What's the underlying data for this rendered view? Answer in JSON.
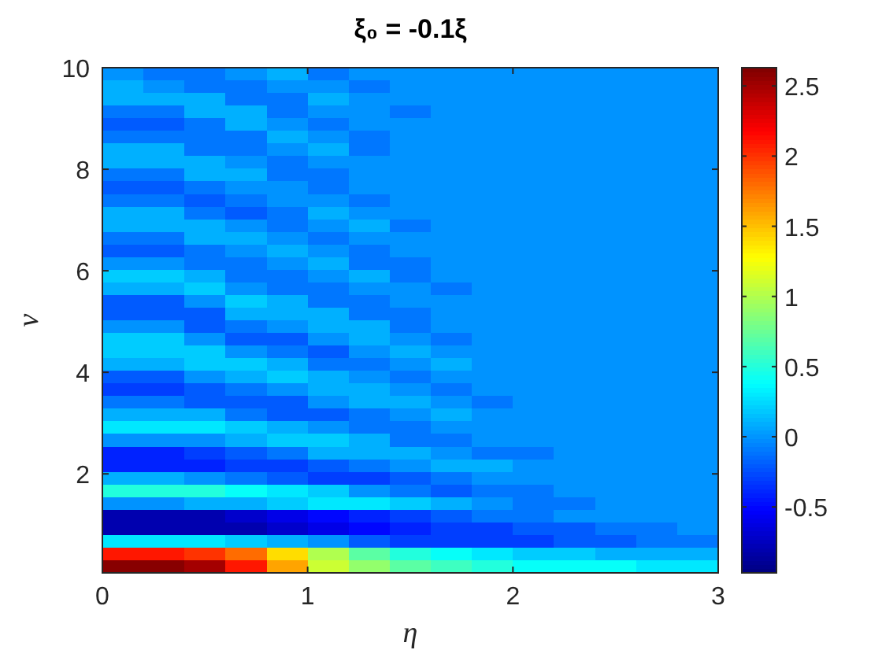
{
  "chart_data": {
    "type": "heatmap",
    "title": "ξ₀ = -0.1ξ",
    "xlabel": "η",
    "ylabel": "ν",
    "xlim": [
      0,
      3
    ],
    "xticks": [
      0,
      1,
      2,
      3
    ],
    "ylim": [
      0.05,
      10
    ],
    "yticks": [
      2,
      4,
      6,
      8,
      10
    ],
    "clim": [
      -0.97,
      2.63
    ],
    "cticks": [
      -0.5,
      0,
      0.5,
      1,
      1.5,
      2,
      2.5
    ],
    "cells": [
      [
        0,
        -0.1,
        -0.1,
        0,
        0.1,
        -0.1,
        0,
        0,
        0,
        0,
        0,
        0,
        0,
        0,
        0
      ],
      [
        0.1,
        0,
        -0.1,
        -0.1,
        0,
        0,
        -0.1,
        0,
        0,
        0,
        0,
        0,
        0,
        0,
        0
      ],
      [
        0.1,
        0.1,
        0.1,
        -0.1,
        -0.1,
        0.1,
        0,
        0,
        0,
        0,
        0,
        0,
        0,
        0,
        0
      ],
      [
        -0.1,
        -0.1,
        0.1,
        0.1,
        -0.1,
        0,
        0,
        -0.1,
        0,
        0,
        0,
        0,
        0,
        0,
        0
      ],
      [
        -0.2,
        -0.2,
        -0.1,
        0.1,
        0,
        -0.1,
        0,
        0,
        0,
        0,
        0,
        0,
        0,
        0,
        0
      ],
      [
        -0.1,
        -0.1,
        -0.1,
        -0.1,
        0.1,
        0,
        -0.1,
        0,
        0,
        0,
        0,
        0,
        0,
        0,
        0
      ],
      [
        0.1,
        0.1,
        -0.1,
        -0.1,
        0,
        0.1,
        -0.1,
        0,
        0,
        0,
        0,
        0,
        0,
        0,
        0
      ],
      [
        0.1,
        0.1,
        0.1,
        0,
        -0.1,
        0,
        0,
        0,
        0,
        0,
        0,
        0,
        0,
        0,
        0
      ],
      [
        -0.1,
        -0.1,
        0.1,
        0.1,
        -0.1,
        -0.1,
        0,
        0,
        0,
        0,
        0,
        0,
        0,
        0,
        0
      ],
      [
        -0.2,
        -0.2,
        -0.1,
        0,
        0,
        -0.1,
        0,
        0,
        0,
        0,
        0,
        0,
        0,
        0,
        0
      ],
      [
        -0.1,
        -0.1,
        -0.2,
        -0.1,
        0,
        0,
        -0.1,
        0,
        0,
        0,
        0,
        0,
        0,
        0,
        0
      ],
      [
        0.1,
        0.1,
        -0.1,
        -0.2,
        -0.1,
        0.1,
        0,
        0,
        0,
        0,
        0,
        0,
        0,
        0,
        0
      ],
      [
        0.1,
        0.1,
        0.1,
        0,
        -0.1,
        0,
        0.1,
        -0.1,
        0,
        0,
        0,
        0,
        0,
        0,
        0
      ],
      [
        -0.1,
        -0.1,
        0.1,
        0.1,
        0,
        -0.1,
        0,
        0,
        0,
        0,
        0,
        0,
        0,
        0,
        0
      ],
      [
        -0.2,
        -0.2,
        -0.1,
        0,
        0.1,
        0,
        -0.1,
        0,
        0,
        0,
        0,
        0,
        0,
        0,
        0
      ],
      [
        0,
        0,
        -0.1,
        -0.1,
        0,
        0.1,
        -0.1,
        -0.1,
        0,
        0,
        0,
        0,
        0,
        0,
        0
      ],
      [
        0.2,
        0.2,
        0.1,
        -0.1,
        -0.1,
        0,
        0.1,
        -0.1,
        0,
        0,
        0,
        0,
        0,
        0,
        0
      ],
      [
        0.1,
        0.1,
        0.2,
        0,
        -0.1,
        -0.1,
        0,
        0,
        -0.1,
        0,
        0,
        0,
        0,
        0,
        0
      ],
      [
        -0.2,
        -0.2,
        0,
        0.2,
        0.1,
        -0.1,
        -0.1,
        0,
        0,
        0,
        0,
        0,
        0,
        0,
        0
      ],
      [
        -0.2,
        -0.2,
        -0.2,
        0.1,
        0.1,
        0.1,
        -0.1,
        -0.1,
        0,
        0,
        0,
        0,
        0,
        0,
        0
      ],
      [
        0,
        0,
        -0.2,
        -0.1,
        0,
        0.1,
        0.1,
        -0.1,
        0,
        0,
        0,
        0,
        0,
        0,
        0
      ],
      [
        0.2,
        0.2,
        0,
        -0.2,
        -0.2,
        0,
        0.1,
        0,
        -0.1,
        0,
        0,
        0,
        0,
        0,
        0
      ],
      [
        0.2,
        0.2,
        0.2,
        0,
        -0.1,
        -0.2,
        0,
        0.1,
        0,
        0,
        0,
        0,
        0,
        0,
        0
      ],
      [
        0.1,
        0.1,
        0.2,
        0.2,
        0.1,
        -0.1,
        -0.1,
        0,
        0.1,
        0,
        0,
        0,
        0,
        0,
        0
      ],
      [
        -0.2,
        -0.2,
        0,
        0.1,
        0.2,
        0.1,
        0,
        -0.1,
        0,
        0,
        0,
        0,
        0,
        0,
        0
      ],
      [
        -0.3,
        -0.3,
        -0.2,
        -0.1,
        0,
        0.1,
        0.1,
        0,
        -0.1,
        0,
        0,
        0,
        0,
        0,
        0
      ],
      [
        -0.1,
        -0.1,
        -0.2,
        -0.2,
        -0.2,
        0,
        0.1,
        0.1,
        0,
        -0.1,
        0,
        0,
        0,
        0,
        0
      ],
      [
        0.1,
        0.1,
        0.1,
        -0.1,
        -0.2,
        -0.2,
        -0.1,
        0,
        0.1,
        0,
        0,
        0,
        0,
        0,
        0
      ],
      [
        0.3,
        0.3,
        0.3,
        0.2,
        0.1,
        0,
        -0.1,
        -0.1,
        0,
        0,
        0,
        0,
        0,
        0,
        0
      ],
      [
        0,
        0,
        0,
        0.1,
        0.2,
        0.2,
        0.1,
        -0.1,
        -0.1,
        0,
        0,
        0,
        0,
        0,
        0
      ],
      [
        -0.4,
        -0.4,
        -0.3,
        -0.2,
        -0.1,
        0.1,
        0.1,
        0.1,
        0,
        -0.1,
        -0.1,
        0,
        0,
        0,
        0
      ],
      [
        -0.4,
        -0.4,
        -0.4,
        -0.3,
        -0.3,
        -0.2,
        -0.1,
        0,
        0.1,
        0.1,
        0,
        0,
        0,
        0,
        0
      ],
      [
        0.1,
        0.1,
        0,
        -0.1,
        -0.2,
        -0.3,
        -0.3,
        -0.2,
        -0.1,
        0,
        0,
        0,
        0,
        0,
        0
      ],
      [
        0.5,
        0.5,
        0.5,
        0.4,
        0.3,
        0.2,
        0,
        -0.1,
        -0.2,
        -0.1,
        -0.1,
        0,
        0,
        0,
        0
      ],
      [
        0,
        0,
        0.1,
        0.1,
        0.2,
        0.3,
        0.3,
        0.2,
        0.1,
        0,
        -0.1,
        -0.1,
        0,
        0,
        0
      ],
      [
        -0.8,
        -0.8,
        -0.8,
        -0.7,
        -0.6,
        -0.5,
        -0.4,
        -0.3,
        -0.2,
        -0.1,
        -0.1,
        0,
        0,
        0,
        0
      ],
      [
        -0.8,
        -0.8,
        -0.8,
        -0.8,
        -0.7,
        -0.6,
        -0.5,
        -0.4,
        -0.3,
        -0.3,
        -0.2,
        -0.2,
        -0.1,
        -0.1,
        0
      ],
      [
        0.3,
        0.3,
        0.3,
        0.2,
        0.1,
        0,
        -0.2,
        -0.3,
        -0.3,
        -0.3,
        -0.3,
        -0.2,
        -0.2,
        -0.1,
        -0.1
      ],
      [
        2.1,
        2.1,
        2.0,
        1.8,
        1.4,
        1.0,
        0.7,
        0.5,
        0.4,
        0.3,
        0.2,
        0.2,
        0.1,
        0.1,
        0.1
      ],
      [
        2.6,
        2.6,
        2.5,
        2.1,
        1.6,
        1.1,
        0.9,
        0.7,
        0.6,
        0.5,
        0.4,
        0.4,
        0.4,
        0.3,
        0.3
      ]
    ]
  }
}
